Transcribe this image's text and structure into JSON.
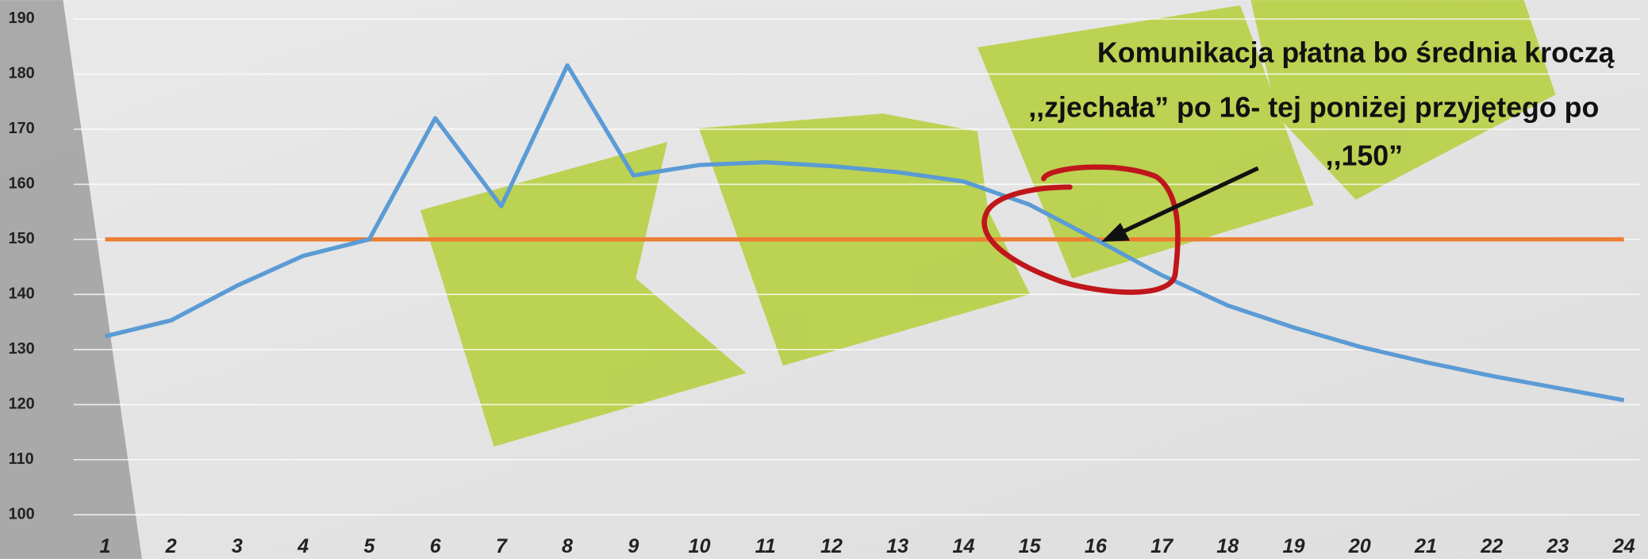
{
  "chart_data": {
    "type": "line",
    "categories": [
      1,
      2,
      3,
      4,
      5,
      6,
      7,
      8,
      9,
      10,
      11,
      12,
      13,
      14,
      15,
      16,
      17,
      18,
      19,
      20,
      21,
      22,
      23,
      24
    ],
    "series": [
      {
        "name": null,
        "color": "#5b9bd5",
        "values": [
          132.4,
          135.3,
          141.6,
          147,
          150,
          172,
          156,
          181.6,
          161.6,
          163.5,
          164,
          163.3,
          162.2,
          160.5,
          156.3,
          150,
          143.5,
          138,
          134,
          130.5,
          127.7,
          125.2,
          123,
          120.8
        ]
      },
      {
        "name": null,
        "color": "#ed7d31",
        "values": [
          150,
          150,
          150,
          150,
          150,
          150,
          150,
          150,
          150,
          150,
          150,
          150,
          150,
          150,
          150,
          150,
          150,
          150,
          150,
          150,
          150,
          150,
          150,
          150
        ]
      }
    ],
    "ylim": [
      100,
      190
    ],
    "yticks": [
      100,
      110,
      120,
      130,
      140,
      150,
      160,
      170,
      180,
      190
    ],
    "grid": true,
    "annotation": [
      "Komunikacja płatna bo średnia kroczą",
      ",,zjechała” po 16- tej poniżej przyjętego po",
      ",,150”"
    ]
  }
}
